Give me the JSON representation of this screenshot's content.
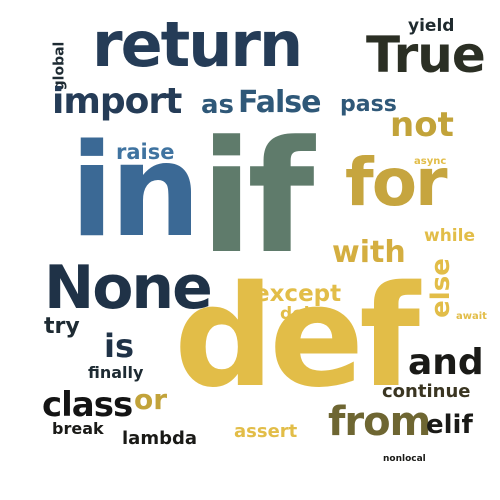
{
  "words": {
    "return": {
      "text": "return",
      "color": "#253c57"
    },
    "true": {
      "text": "True",
      "color": "#2b2f24"
    },
    "yield": {
      "text": "yield",
      "color": "#1f2a2e"
    },
    "global": {
      "text": "global",
      "color": "#1e2b33"
    },
    "import": {
      "text": "import",
      "color": "#253c57"
    },
    "as": {
      "text": "as",
      "color": "#2f5878"
    },
    "false": {
      "text": "False",
      "color": "#2f5878"
    },
    "pass": {
      "text": "pass",
      "color": "#2f5878"
    },
    "not": {
      "text": "not",
      "color": "#c2a33a"
    },
    "raise": {
      "text": "raise",
      "color": "#3f73a0"
    },
    "async": {
      "text": "async",
      "color": "#e2bd48"
    },
    "in": {
      "text": "in",
      "color": "#3b6995"
    },
    "if": {
      "text": "if",
      "color": "#5f7b6b"
    },
    "for": {
      "text": "for",
      "color": "#c6a53f"
    },
    "with": {
      "text": "with",
      "color": "#d4ae40"
    },
    "while": {
      "text": "while",
      "color": "#e2bd48"
    },
    "none": {
      "text": "None",
      "color": "#1f3247"
    },
    "except": {
      "text": "except",
      "color": "#e2bd48"
    },
    "else": {
      "text": "else",
      "color": "#e2bd48"
    },
    "del": {
      "text": "del",
      "color": "#e2bd48"
    },
    "await": {
      "text": "await",
      "color": "#e2bd48"
    },
    "try": {
      "text": "try",
      "color": "#1e2b33"
    },
    "is": {
      "text": "is",
      "color": "#1f3247"
    },
    "def": {
      "text": "def",
      "color": "#e2bd48"
    },
    "and": {
      "text": "and",
      "color": "#1a1a17"
    },
    "finally": {
      "text": "finally",
      "color": "#1e2b33"
    },
    "continue": {
      "text": "continue",
      "color": "#3a3521"
    },
    "class": {
      "text": "class",
      "color": "#141414"
    },
    "or": {
      "text": "or",
      "color": "#c2a33a"
    },
    "from": {
      "text": "from",
      "color": "#6e6632"
    },
    "elif": {
      "text": "elif",
      "color": "#1a1a17"
    },
    "break": {
      "text": "break",
      "color": "#1a1a17"
    },
    "lambda": {
      "text": "lambda",
      "color": "#1a1a17"
    },
    "assert": {
      "text": "assert",
      "color": "#e2bd48"
    },
    "nonlocal": {
      "text": "nonlocal",
      "color": "#1a1a17"
    }
  }
}
